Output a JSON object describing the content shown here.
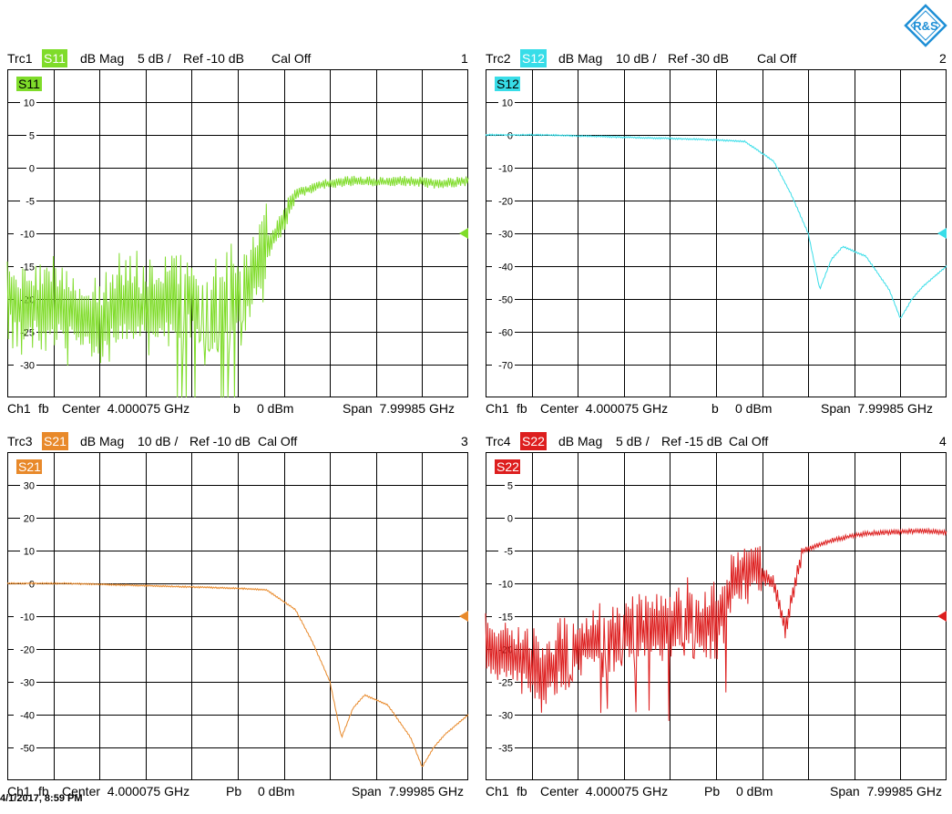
{
  "timestamp": "4/1/2017, 8:59 PM",
  "logo_text": "R&S",
  "chart_data": [
    {
      "type": "line",
      "trace": "Trc1",
      "param": "S11",
      "format": "dB Mag",
      "scale": "5 dB /",
      "ref": "Ref -10 dB",
      "cal": "Cal Off",
      "window": "1",
      "color": "#7fdc2a",
      "ylim": [
        -35,
        15
      ],
      "yticks": [
        10,
        5,
        0,
        -5,
        -10,
        -15,
        -20,
        -25,
        -30
      ],
      "ref_value": -10,
      "footer": {
        "channel": "Ch1",
        "mode": "fb",
        "center": "Center  4.000075 GHz",
        "marker": "b",
        "power": "0 dBm",
        "span": "Span  7.99985 GHz"
      },
      "series": [
        {
          "x": [
            0.0,
            0.5,
            1.0,
            1.5,
            2.0,
            2.5,
            3.0,
            3.5,
            4.0,
            4.4,
            4.8,
            5.0,
            5.5,
            6.0,
            6.5,
            7.0,
            7.5,
            8.0
          ],
          "values": [
            -20,
            -21,
            -22,
            -24,
            -21,
            -22,
            -20,
            -21,
            -20,
            -14,
            -8,
            -4,
            -2.5,
            -2,
            -2.2,
            -2,
            -2.5,
            -2
          ]
        }
      ]
    },
    {
      "type": "line",
      "trace": "Trc2",
      "param": "S12",
      "format": "dB Mag",
      "scale": "10 dB /",
      "ref": "Ref -30 dB",
      "cal": "Cal Off",
      "window": "2",
      "color": "#38dde8",
      "ylim": [
        -80,
        20
      ],
      "yticks": [
        10,
        0,
        -10,
        -20,
        -30,
        -40,
        -50,
        -60,
        -70
      ],
      "ref_value": -30,
      "footer": {
        "channel": "Ch1",
        "mode": "fb",
        "center": "Center  4.000075 GHz",
        "marker": "b",
        "power": "0 dBm",
        "span": "Span  7.99985 GHz"
      },
      "series": [
        {
          "x": [
            0.0,
            1.0,
            2.0,
            3.0,
            4.0,
            4.5,
            5.0,
            5.3,
            5.6,
            5.8,
            6.0,
            6.2,
            6.6,
            7.0,
            7.2,
            7.4,
            7.6,
            8.0
          ],
          "values": [
            0,
            0,
            -0.5,
            -1,
            -1.5,
            -2,
            -8,
            -18,
            -30,
            -47,
            -38,
            -34,
            -37,
            -47,
            -56,
            -50,
            -46,
            -40
          ]
        }
      ]
    },
    {
      "type": "line",
      "trace": "Trc3",
      "param": "S21",
      "format": "dB Mag",
      "scale": "10 dB /",
      "ref": "Ref -10 dB",
      "cal": "Cal Off",
      "window": "3",
      "color": "#e8892a",
      "ylim": [
        -60,
        40
      ],
      "yticks": [
        30,
        20,
        10,
        0,
        -10,
        -20,
        -30,
        -40,
        -50
      ],
      "ref_value": -10,
      "footer": {
        "channel": "Ch1",
        "mode": "fb",
        "center": "Center  4.000075 GHz",
        "marker": "Pb",
        "power": "0 dBm",
        "span": "Span  7.99985 GHz"
      },
      "series": [
        {
          "x": [
            0.0,
            1.0,
            2.0,
            3.0,
            4.0,
            4.5,
            5.0,
            5.3,
            5.6,
            5.8,
            6.0,
            6.2,
            6.6,
            7.0,
            7.2,
            7.4,
            7.6,
            8.0
          ],
          "values": [
            0,
            0,
            -0.5,
            -1,
            -1.5,
            -2,
            -8,
            -18,
            -30,
            -47,
            -38,
            -34,
            -37,
            -47,
            -56,
            -50,
            -46,
            -40
          ]
        }
      ]
    },
    {
      "type": "line",
      "trace": "Trc4",
      "param": "S22",
      "format": "dB Mag",
      "scale": "5 dB /",
      "ref": "Ref -15 dB",
      "cal": "Cal Off",
      "window": "4",
      "color": "#dd1e1e",
      "ylim": [
        -40,
        10
      ],
      "yticks": [
        5,
        0,
        -5,
        -10,
        -15,
        -20,
        -25,
        -30,
        -35
      ],
      "ref_value": -15,
      "footer": {
        "channel": "Ch1",
        "mode": "fb",
        "center": "Center  4.000075 GHz",
        "marker": "Pb",
        "power": "0 dBm",
        "span": "Span  7.99985 GHz"
      },
      "series": [
        {
          "x": [
            0.0,
            0.5,
            1.0,
            1.5,
            2.0,
            2.5,
            3.0,
            3.5,
            4.0,
            4.3,
            4.6,
            5.0,
            5.2,
            5.5,
            6.0,
            6.5,
            7.0,
            7.5,
            8.0
          ],
          "values": [
            -20,
            -21,
            -24,
            -20,
            -18,
            -17,
            -17,
            -16,
            -16,
            -10,
            -7,
            -10,
            -17,
            -5,
            -3.5,
            -2.5,
            -2.2,
            -2,
            -2.2
          ]
        }
      ]
    }
  ]
}
